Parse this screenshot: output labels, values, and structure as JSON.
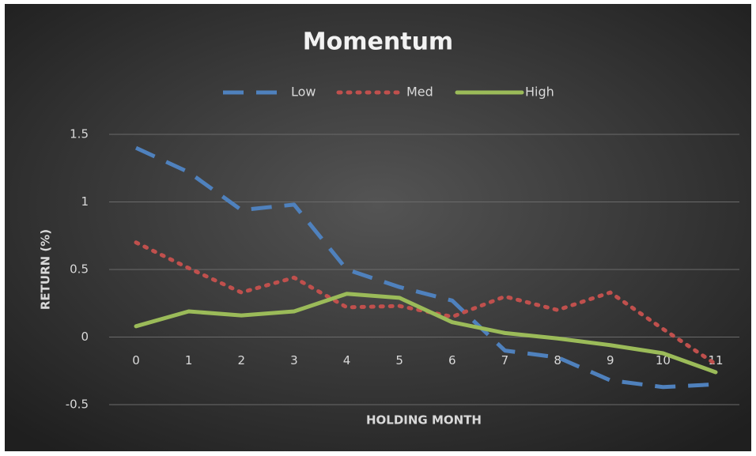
{
  "chart_data": {
    "type": "line",
    "title": "Momentum",
    "x_label": "HOLDING MONTH",
    "y_label": "RETURN (%)",
    "categories": [
      "0",
      "1",
      "2",
      "3",
      "4",
      "5",
      "6",
      "7",
      "8",
      "9",
      "10",
      "11"
    ],
    "series": [
      {
        "name": "Low",
        "color": "#4f81bd",
        "style": "dashed",
        "values": [
          1.4,
          1.22,
          0.94,
          0.98,
          0.5,
          0.37,
          0.27,
          -0.1,
          -0.15,
          -0.32,
          -0.37,
          -0.35
        ]
      },
      {
        "name": "Med",
        "color": "#c0504d",
        "style": "dotted",
        "values": [
          0.7,
          0.51,
          0.33,
          0.44,
          0.22,
          0.23,
          0.15,
          0.3,
          0.2,
          0.33,
          0.06,
          -0.2
        ]
      },
      {
        "name": "High",
        "color": "#9bbb59",
        "style": "solid",
        "values": [
          0.08,
          0.19,
          0.16,
          0.19,
          0.32,
          0.29,
          0.11,
          0.03,
          -0.01,
          -0.06,
          -0.12,
          -0.26
        ]
      }
    ],
    "ylim": [
      -0.5,
      1.5
    ],
    "yticks": [
      -0.5,
      0,
      0.5,
      1,
      1.5
    ],
    "grid": true,
    "legend": "top"
  }
}
